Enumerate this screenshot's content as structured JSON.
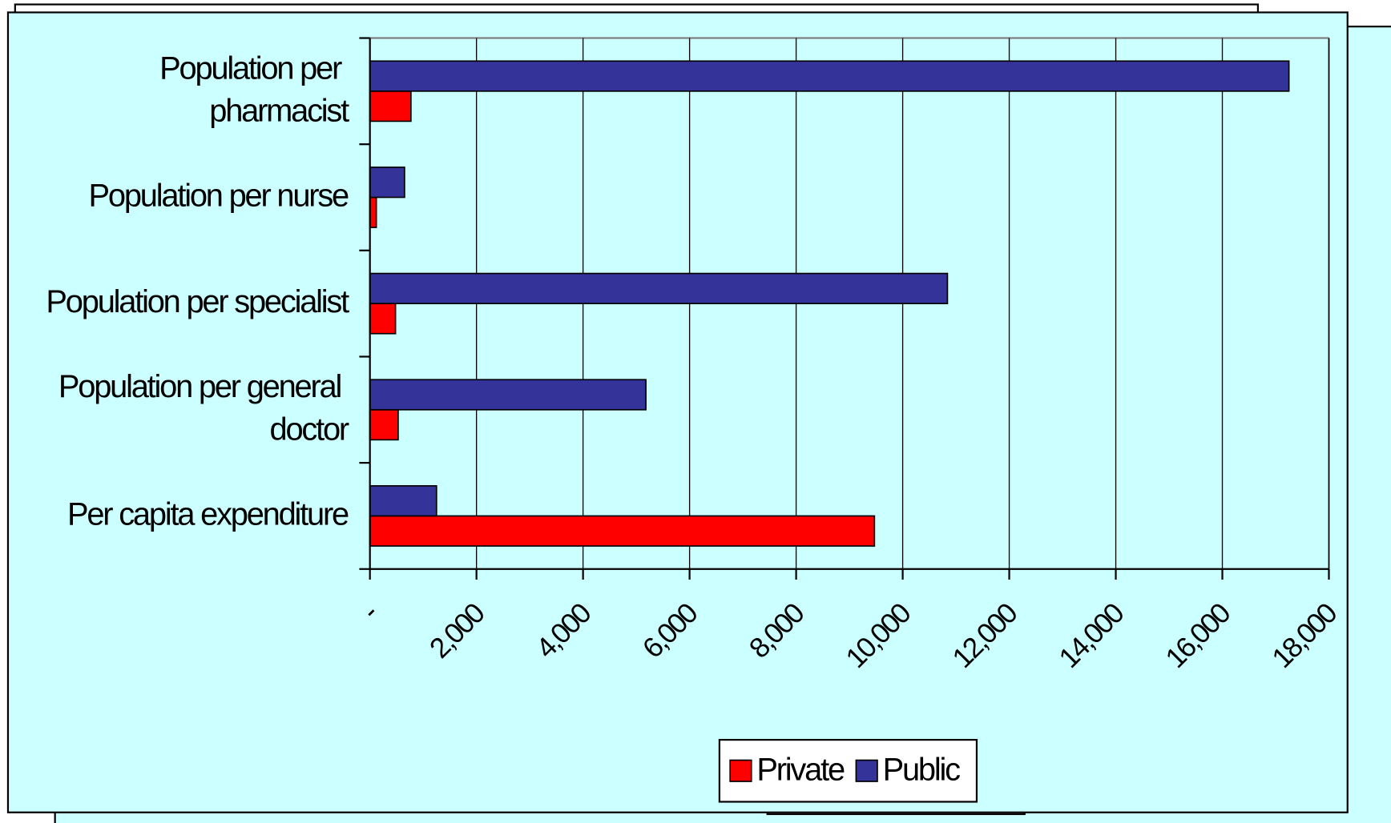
{
  "chart_data": {
    "type": "bar",
    "orientation": "horizontal",
    "categories": [
      "Population per pharmacist",
      "Population per nurse",
      "Population per specialist",
      "Population per general doctor",
      "Per capita expenditure"
    ],
    "series": [
      {
        "name": "Private",
        "color": "#ff0000",
        "values": [
          770,
          120,
          480,
          530,
          9470
        ]
      },
      {
        "name": "Public",
        "color": "#333399",
        "values": [
          17250,
          650,
          10840,
          5180,
          1250
        ]
      }
    ],
    "xlim": [
      0,
      18000
    ],
    "xticks": [
      {
        "value": 0,
        "label": "-"
      },
      {
        "value": 2000,
        "label": "2,000"
      },
      {
        "value": 4000,
        "label": "4,000"
      },
      {
        "value": 6000,
        "label": "6,000"
      },
      {
        "value": 8000,
        "label": "8,000"
      },
      {
        "value": 10000,
        "label": "10,000"
      },
      {
        "value": 12000,
        "label": "12,000"
      },
      {
        "value": 14000,
        "label": "14,000"
      },
      {
        "value": 16000,
        "label": "16,000"
      },
      {
        "value": 18000,
        "label": "18,000"
      }
    ],
    "grid": true,
    "legend": "bottom"
  }
}
